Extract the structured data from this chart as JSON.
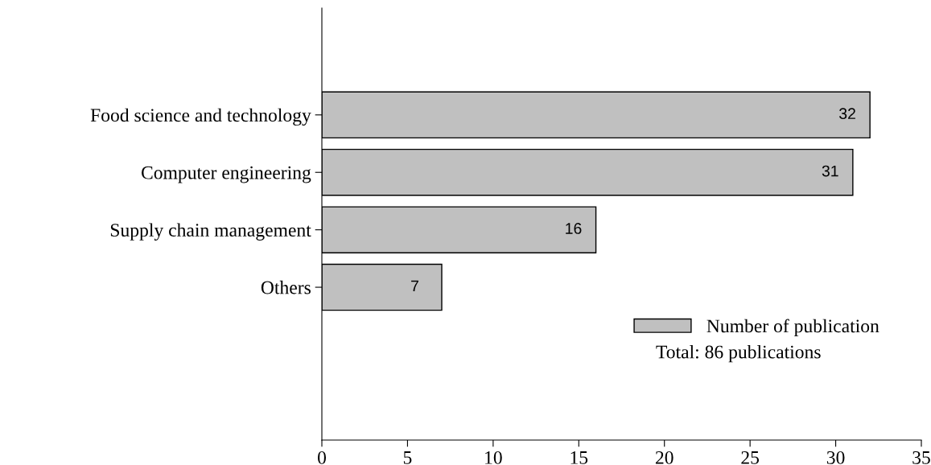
{
  "chart_data": {
    "type": "bar",
    "orientation": "horizontal",
    "categories": [
      "Food science and technology",
      "Computer engineering",
      "Supply chain management",
      "Others"
    ],
    "series": [
      {
        "name": "Number of publication",
        "color": "#c0c0c0",
        "values": [
          32,
          31,
          16,
          7
        ]
      }
    ],
    "xlim": [
      0,
      35
    ],
    "xticks": [
      0,
      5,
      10,
      15,
      20,
      25,
      30,
      35
    ],
    "data_labels": true,
    "legend": "bottom right",
    "grid": false,
    "annotations": [
      "Total: 86 publications"
    ]
  }
}
